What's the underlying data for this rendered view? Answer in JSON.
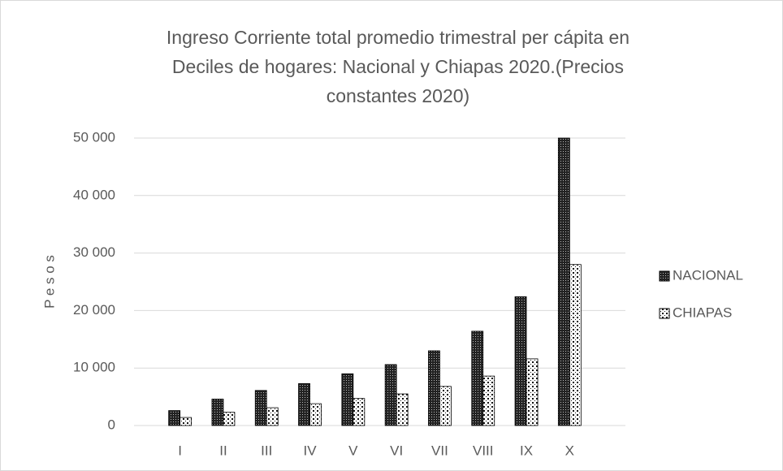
{
  "chart_data": {
    "type": "bar",
    "title": [
      "Ingreso Corriente total promedio trimestral per cápita en",
      "Deciles de  hogares: Nacional y Chiapas 2020.(Precios",
      "constantes 2020)"
    ],
    "y_label": "P e s o s",
    "categories": [
      "I",
      "II",
      "III",
      "IV",
      "V",
      "VI",
      "VII",
      "VIII",
      "IX",
      "X"
    ],
    "series": [
      {
        "name": "NACIONAL",
        "color": "#222222",
        "values": [
          2600,
          4600,
          6100,
          7300,
          9000,
          10600,
          13000,
          16400,
          22400,
          50000
        ]
      },
      {
        "name": "CHIAPAS",
        "color": "#ffffff",
        "values": [
          1400,
          2300,
          3100,
          3800,
          4700,
          5500,
          6800,
          8600,
          11600,
          28000
        ]
      }
    ],
    "ylim": [
      0,
      50000
    ],
    "yticks": [
      0,
      {
        "value": 10000,
        "label": "10 000"
      },
      {
        "value": 20000,
        "label": "20 000"
      },
      {
        "value": 30000,
        "label": "30 000"
      },
      {
        "value": 40000,
        "label": "40 000"
      },
      {
        "value": 50000,
        "label": "50 000"
      }
    ],
    "grid": true,
    "legend": "right"
  }
}
